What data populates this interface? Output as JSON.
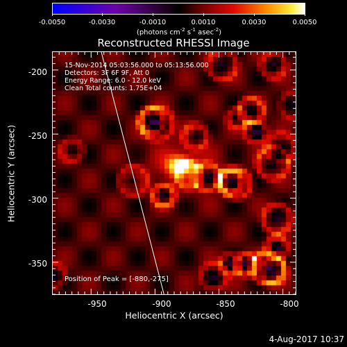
{
  "colorbar": {
    "ticks": [
      "-0.0050",
      "-0.0030",
      "-0.0010",
      "0.0010",
      "0.0030",
      "0.0050"
    ],
    "unit_prefix": "(photons cm",
    "unit_exp1": "-2",
    "unit_mid1": " s",
    "unit_exp2": "-1",
    "unit_mid2": " asec",
    "unit_exp3": "-2",
    "unit_suffix": ")"
  },
  "title": "Reconstructed RHESSI Image",
  "info": {
    "line1": "15-Nov-2014 05:03:56.000 to 05:13:56.000",
    "line2": "Detectors: 3F 6F 9F, Att 0",
    "line3": "Energy Range: 6.0 - 12.0 keV",
    "line4": "Clean     Total counts: 1.75E+04"
  },
  "peak_text": "Position of Peak = [-880,-275]",
  "chart_data": {
    "type": "heatmap",
    "title": "Reconstructed RHESSI Image",
    "xlabel": "Heliocentric X (arcsec)",
    "ylabel": "Heliocentric Y (arcsec)",
    "xlim": [
      -980,
      -790
    ],
    "ylim": [
      -375,
      -186
    ],
    "x_ticks": [
      "-950",
      "-900",
      "-850",
      "-800"
    ],
    "y_ticks": [
      "-200",
      "-250",
      "-300",
      "-350"
    ],
    "colorbar_range": [
      -0.005,
      0.005
    ],
    "peak": [
      -880,
      -275
    ],
    "limb_line": {
      "top": [
        -942,
        -186
      ],
      "bottom": [
        -893,
        -375
      ]
    }
  },
  "timestamp": "4-Aug-2017 10:37"
}
